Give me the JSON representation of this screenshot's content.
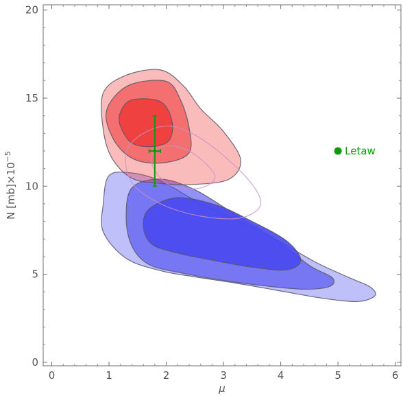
{
  "chart_data": {
    "type": "contour",
    "title": "",
    "xlabel": "μ",
    "ylabel": "N [mb]×10",
    "ylabel_exponent": "−5",
    "xlim": [
      -0.15,
      6.1
    ],
    "ylim": [
      -0.2,
      20.3
    ],
    "x_ticks": [
      {
        "value": 0,
        "label": "0"
      },
      {
        "value": 1,
        "label": "1"
      },
      {
        "value": 2,
        "label": "2"
      },
      {
        "value": 3,
        "label": "3"
      },
      {
        "value": 4,
        "label": "4"
      },
      {
        "value": 5,
        "label": "5"
      },
      {
        "value": 6,
        "label": "6"
      }
    ],
    "y_ticks": [
      {
        "value": 0,
        "label": "0"
      },
      {
        "value": 5,
        "label": "5"
      },
      {
        "value": 10,
        "label": "10"
      },
      {
        "value": 15,
        "label": "15"
      },
      {
        "value": 20,
        "label": "20"
      }
    ],
    "grid": false,
    "colors": {
      "blue": "#4848f0",
      "red": "#f03c3c",
      "pink_outline": "#c890c8",
      "green": "#0e9a0e",
      "contour_line": "#555566"
    },
    "regions": [
      {
        "color": "blue",
        "levels": [
          {
            "opacity": 0.35,
            "points": [
              [
                1.0,
                10.6
              ],
              [
                1.4,
                10.75
              ],
              [
                1.9,
                10.3
              ],
              [
                2.5,
                9.2
              ],
              [
                3.2,
                8.1
              ],
              [
                3.9,
                7.0
              ],
              [
                4.6,
                5.7
              ],
              [
                5.2,
                4.8
              ],
              [
                5.55,
                4.3
              ],
              [
                5.65,
                3.8
              ],
              [
                5.35,
                3.45
              ],
              [
                4.7,
                3.65
              ],
              [
                4.0,
                4.05
              ],
              [
                3.2,
                4.5
              ],
              [
                2.5,
                4.85
              ],
              [
                1.9,
                5.2
              ],
              [
                1.3,
                5.9
              ],
              [
                0.9,
                7.4
              ],
              [
                0.9,
                9.0
              ]
            ]
          },
          {
            "opacity": 0.6,
            "points": [
              [
                1.4,
                9.9
              ],
              [
                1.9,
                10.4
              ],
              [
                2.5,
                9.8
              ],
              [
                3.2,
                8.4
              ],
              [
                3.9,
                7.0
              ],
              [
                4.5,
                5.5
              ],
              [
                4.9,
                4.8
              ],
              [
                4.85,
                4.3
              ],
              [
                4.4,
                4.15
              ],
              [
                3.7,
                4.35
              ],
              [
                3.0,
                4.65
              ],
              [
                2.3,
                5.05
              ],
              [
                1.7,
                5.55
              ],
              [
                1.4,
                6.6
              ],
              [
                1.3,
                8.2
              ]
            ]
          },
          {
            "opacity": 0.9,
            "points": [
              [
                1.7,
                8.7
              ],
              [
                2.2,
                9.35
              ],
              [
                2.9,
                8.9
              ],
              [
                3.5,
                8.0
              ],
              [
                4.1,
                6.9
              ],
              [
                4.35,
                5.8
              ],
              [
                4.1,
                5.25
              ],
              [
                3.5,
                5.4
              ],
              [
                2.8,
                5.8
              ],
              [
                2.2,
                6.2
              ],
              [
                1.75,
                6.7
              ],
              [
                1.6,
                7.7
              ]
            ]
          }
        ]
      },
      {
        "color": "red",
        "levels": [
          {
            "opacity": 0.35,
            "points": [
              [
                0.9,
                15.3
              ],
              [
                1.3,
                16.3
              ],
              [
                1.9,
                16.6
              ],
              [
                2.3,
                15.7
              ],
              [
                2.6,
                14.4
              ],
              [
                3.0,
                13.1
              ],
              [
                3.3,
                11.5
              ],
              [
                3.1,
                10.4
              ],
              [
                2.5,
                10.1
              ],
              [
                1.9,
                10.15
              ],
              [
                1.4,
                10.45
              ],
              [
                1.05,
                11.6
              ],
              [
                0.9,
                13.2
              ]
            ]
          },
          {
            "opacity": 0.6,
            "points": [
              [
                1.05,
                14.9
              ],
              [
                1.4,
                15.8
              ],
              [
                2.0,
                15.95
              ],
              [
                2.25,
                14.9
              ],
              [
                2.4,
                13.3
              ],
              [
                2.4,
                11.9
              ],
              [
                2.0,
                11.35
              ],
              [
                1.5,
                11.45
              ],
              [
                1.15,
                12.3
              ],
              [
                0.95,
                13.8
              ]
            ]
          },
          {
            "opacity": 0.9,
            "points": [
              [
                1.2,
                14.2
              ],
              [
                1.4,
                14.9
              ],
              [
                1.9,
                14.8
              ],
              [
                2.1,
                13.7
              ],
              [
                2.05,
                12.6
              ],
              [
                1.75,
                12.25
              ],
              [
                1.4,
                12.45
              ],
              [
                1.2,
                13.4
              ]
            ]
          }
        ]
      }
    ],
    "pink_outlines": [
      {
        "points": [
          [
            1.3,
            11.9
          ],
          [
            1.6,
            13.0
          ],
          [
            2.1,
            13.4
          ],
          [
            2.7,
            12.5
          ],
          [
            3.4,
            10.5
          ],
          [
            3.65,
            9.0
          ],
          [
            3.3,
            8.2
          ],
          [
            2.6,
            8.3
          ],
          [
            1.9,
            9.0
          ],
          [
            1.4,
            10.2
          ]
        ]
      },
      {
        "points": [
          [
            1.75,
            11.8
          ],
          [
            2.0,
            12.3
          ],
          [
            2.45,
            11.9
          ],
          [
            2.85,
            10.6
          ],
          [
            2.6,
            9.9
          ],
          [
            2.1,
            10.0
          ],
          [
            1.8,
            10.9
          ]
        ]
      }
    ],
    "data_point": {
      "x": 1.8,
      "y": 12.0,
      "x_err": 0.1,
      "y_err": 2.0
    },
    "legend": {
      "label": "Letaw",
      "x": 5.0,
      "y": 12.0
    }
  }
}
